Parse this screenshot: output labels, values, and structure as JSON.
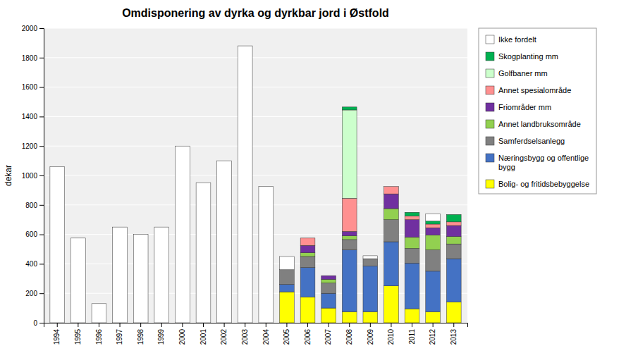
{
  "chart_data": {
    "type": "bar",
    "stacked": true,
    "title": "Omdisponering av dyrka og dyrkbar jord i Østfold",
    "ylabel": "dekar",
    "categories": [
      "1994",
      "1995",
      "1996",
      "1997",
      "1998",
      "1999",
      "2000",
      "2001",
      "2002",
      "2003",
      "2004",
      "2005",
      "2006",
      "2007",
      "2008",
      "2009",
      "2010",
      "2011",
      "2012",
      "2013"
    ],
    "series": [
      {
        "name": "Bolig- og fritidsbebyggelse",
        "color": "#FFFF00",
        "values": [
          0,
          0,
          0,
          0,
          0,
          0,
          0,
          0,
          0,
          0,
          0,
          210,
          175,
          100,
          75,
          75,
          250,
          95,
          75,
          140
        ]
      },
      {
        "name": "Næringsbygg og offentlige\nbygg",
        "color": "#4472C4",
        "values": [
          0,
          0,
          0,
          0,
          0,
          0,
          0,
          0,
          0,
          0,
          0,
          50,
          200,
          100,
          420,
          310,
          300,
          310,
          275,
          295
        ]
      },
      {
        "name": "Samferdselsanlegg",
        "color": "#808080",
        "values": [
          0,
          0,
          0,
          0,
          0,
          0,
          0,
          0,
          0,
          0,
          0,
          100,
          75,
          70,
          70,
          50,
          150,
          100,
          145,
          100
        ]
      },
      {
        "name": "Annet landbruksområde",
        "color": "#92D050",
        "values": [
          0,
          0,
          0,
          0,
          0,
          0,
          0,
          0,
          0,
          0,
          0,
          0,
          25,
          25,
          25,
          0,
          75,
          75,
          100,
          50
        ]
      },
      {
        "name": "Friområder mm",
        "color": "#7030A0",
        "values": [
          0,
          0,
          0,
          0,
          0,
          0,
          0,
          0,
          0,
          0,
          0,
          0,
          50,
          25,
          30,
          0,
          100,
          120,
          50,
          75
        ]
      },
      {
        "name": "Annet spesialområde",
        "color": "#FF9090",
        "values": [
          0,
          0,
          0,
          0,
          0,
          0,
          0,
          0,
          0,
          0,
          0,
          0,
          50,
          0,
          225,
          0,
          50,
          25,
          25,
          25
        ]
      },
      {
        "name": "Golfbaner mm",
        "color": "#CCFFCC",
        "values": [
          0,
          0,
          0,
          0,
          0,
          0,
          0,
          0,
          0,
          0,
          0,
          0,
          0,
          0,
          600,
          0,
          0,
          0,
          0,
          0
        ]
      },
      {
        "name": "Skogplanting mm",
        "color": "#00B050",
        "values": [
          0,
          0,
          0,
          0,
          0,
          0,
          0,
          0,
          0,
          0,
          0,
          0,
          0,
          0,
          20,
          0,
          0,
          25,
          20,
          50
        ]
      },
      {
        "name": "Ikke fordelt",
        "color": "#FFFFFF",
        "values": [
          1060,
          575,
          130,
          650,
          600,
          650,
          1200,
          950,
          1100,
          1880,
          925,
          90,
          0,
          0,
          0,
          20,
          0,
          0,
          50,
          0
        ]
      }
    ],
    "ylim": [
      0,
      2000
    ],
    "yticks": [
      0,
      200,
      400,
      600,
      800,
      1000,
      1200,
      1400,
      1600,
      1800,
      2000
    ],
    "grid": true,
    "legend": "right"
  }
}
